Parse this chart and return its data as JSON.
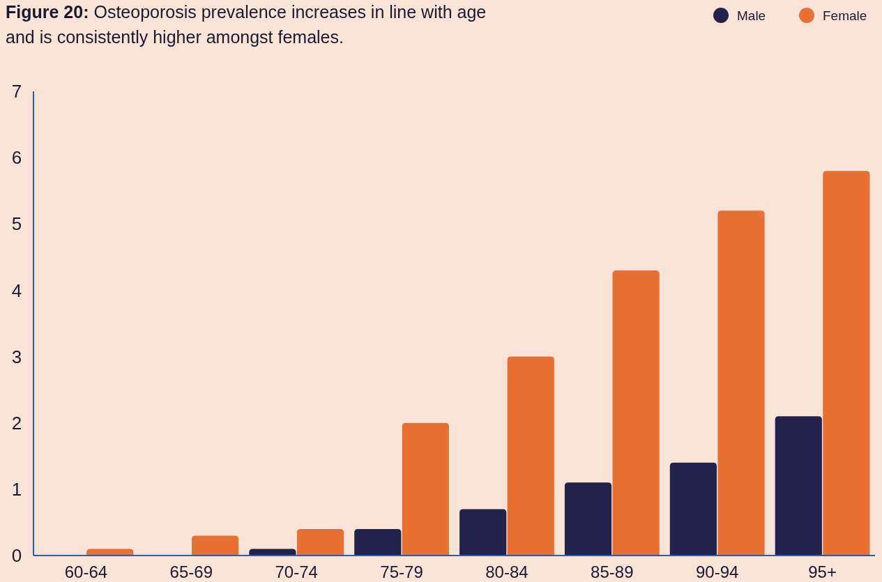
{
  "chart_data": {
    "type": "bar",
    "title": "Figure 20: Osteoporosis prevalence increases in line with age and is consistently higher amongst females.",
    "categories": [
      "60-64",
      "65-69",
      "70-74",
      "75-79",
      "80-84",
      "85-89",
      "90-94",
      "95+"
    ],
    "series": [
      {
        "name": "Male",
        "color": "#22224a",
        "values": [
          0,
          0,
          0.1,
          0.4,
          0.7,
          1.1,
          1.4,
          2.1
        ]
      },
      {
        "name": "Female",
        "color": "#e87033",
        "values": [
          0.1,
          0.3,
          0.4,
          2.0,
          3.0,
          4.3,
          5.2,
          5.8
        ]
      }
    ],
    "ylim": [
      0,
      7
    ],
    "yticks": [
      0,
      1,
      2,
      3,
      4,
      5,
      6,
      7
    ],
    "grid": false,
    "legend": "top right"
  }
}
